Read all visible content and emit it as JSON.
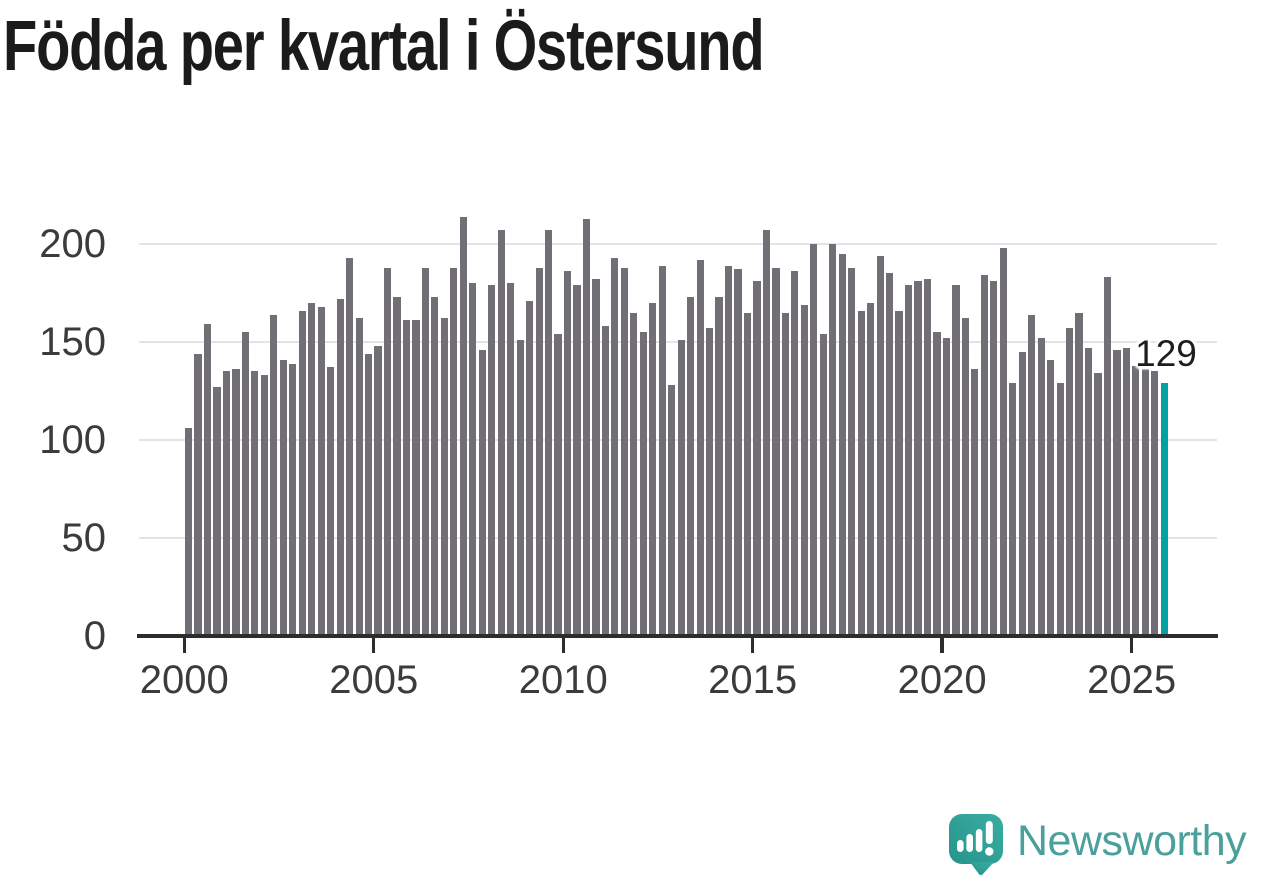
{
  "title": "Födda per kvartal i Östersund",
  "annotation": {
    "last_value_label": "129"
  },
  "branding": {
    "logo_text": "Newsworthy"
  },
  "chart_data": {
    "type": "bar",
    "title": "Födda per kvartal i Östersund",
    "xlabel": "",
    "ylabel": "",
    "ylim": [
      0,
      220
    ],
    "grid": true,
    "legend": "none",
    "bar_color": "#716e76",
    "highlight_color": "#00a2a2",
    "highlight_index": 103,
    "y_ticks": [
      0,
      50,
      100,
      150,
      200
    ],
    "x_ticks": [
      "2000",
      "2005",
      "2010",
      "2015",
      "2020",
      "2025"
    ],
    "categories": [
      "2000-Q1",
      "2000-Q2",
      "2000-Q3",
      "2000-Q4",
      "2001-Q1",
      "2001-Q2",
      "2001-Q3",
      "2001-Q4",
      "2002-Q1",
      "2002-Q2",
      "2002-Q3",
      "2002-Q4",
      "2003-Q1",
      "2003-Q2",
      "2003-Q3",
      "2003-Q4",
      "2004-Q1",
      "2004-Q2",
      "2004-Q3",
      "2004-Q4",
      "2005-Q1",
      "2005-Q2",
      "2005-Q3",
      "2005-Q4",
      "2006-Q1",
      "2006-Q2",
      "2006-Q3",
      "2006-Q4",
      "2007-Q1",
      "2007-Q2",
      "2007-Q3",
      "2007-Q4",
      "2008-Q1",
      "2008-Q2",
      "2008-Q3",
      "2008-Q4",
      "2009-Q1",
      "2009-Q2",
      "2009-Q3",
      "2009-Q4",
      "2010-Q1",
      "2010-Q2",
      "2010-Q3",
      "2010-Q4",
      "2011-Q1",
      "2011-Q2",
      "2011-Q3",
      "2011-Q4",
      "2012-Q1",
      "2012-Q2",
      "2012-Q3",
      "2012-Q4",
      "2013-Q1",
      "2013-Q2",
      "2013-Q3",
      "2013-Q4",
      "2014-Q1",
      "2014-Q2",
      "2014-Q3",
      "2014-Q4",
      "2015-Q1",
      "2015-Q2",
      "2015-Q3",
      "2015-Q4",
      "2016-Q1",
      "2016-Q2",
      "2016-Q3",
      "2016-Q4",
      "2017-Q1",
      "2017-Q2",
      "2017-Q3",
      "2017-Q4",
      "2018-Q1",
      "2018-Q2",
      "2018-Q3",
      "2018-Q4",
      "2019-Q1",
      "2019-Q2",
      "2019-Q3",
      "2019-Q4",
      "2020-Q1",
      "2020-Q2",
      "2020-Q3",
      "2020-Q4",
      "2021-Q1",
      "2021-Q2",
      "2021-Q3",
      "2021-Q4",
      "2022-Q1",
      "2022-Q2",
      "2022-Q3",
      "2022-Q4",
      "2023-Q1",
      "2023-Q2",
      "2023-Q3",
      "2023-Q4",
      "2024-Q1",
      "2024-Q2",
      "2024-Q3",
      "2024-Q4",
      "2025-Q1",
      "2025-Q2",
      "2025-Q3",
      "2025-Q4"
    ],
    "values": [
      106,
      144,
      159,
      127,
      135,
      136,
      155,
      135,
      133,
      164,
      141,
      139,
      166,
      170,
      168,
      137,
      172,
      193,
      162,
      144,
      148,
      188,
      173,
      161,
      161,
      188,
      173,
      162,
      188,
      214,
      180,
      146,
      179,
      207,
      180,
      151,
      171,
      188,
      207,
      154,
      186,
      179,
      213,
      182,
      158,
      193,
      188,
      165,
      155,
      170,
      189,
      128,
      151,
      173,
      192,
      157,
      173,
      189,
      187,
      165,
      181,
      207,
      188,
      165,
      186,
      169,
      200,
      154,
      200,
      195,
      188,
      166,
      170,
      194,
      185,
      166,
      179,
      181,
      182,
      155,
      152,
      179,
      162,
      136,
      184,
      181,
      198,
      129,
      145,
      164,
      152,
      141,
      129,
      157,
      165,
      147,
      134,
      183,
      146,
      147,
      138,
      136,
      135,
      129
    ]
  }
}
